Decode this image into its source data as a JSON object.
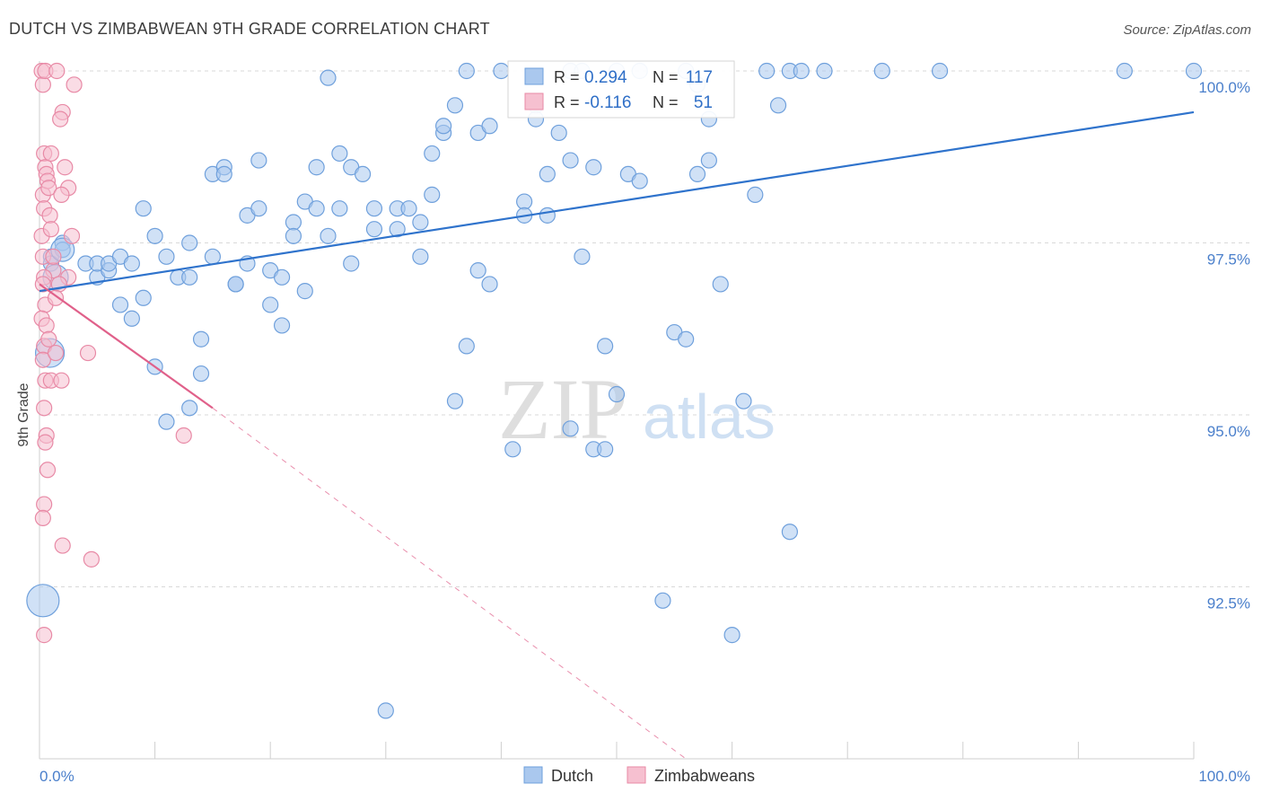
{
  "title": "DUTCH VS ZIMBABWEAN 9TH GRADE CORRELATION CHART",
  "source": "Source: ZipAtlas.com",
  "watermark": {
    "zip": "ZIP",
    "atlas": "atlas"
  },
  "chart_data": {
    "type": "scatter",
    "title": "DUTCH VS ZIMBABWEAN 9TH GRADE CORRELATION CHART",
    "xlabel": "",
    "ylabel": "9th Grade",
    "xlim": [
      0,
      100
    ],
    "ylim": [
      90.0,
      100.5
    ],
    "x_tick_labels": {
      "left": "0.0%",
      "right": "100.0%"
    },
    "y_ticks": [
      {
        "value": 100.0,
        "label": "100.0%"
      },
      {
        "value": 97.5,
        "label": "97.5%"
      },
      {
        "value": 95.0,
        "label": "95.0%"
      },
      {
        "value": 92.5,
        "label": "92.5%"
      }
    ],
    "grid": true,
    "legend_position": "bottom-center",
    "stats_box": [
      {
        "series": "Dutch",
        "r_label": "R =",
        "r_value": "0.294",
        "n_label": "N =",
        "n_value": "117"
      },
      {
        "series": "Zimbabweans",
        "r_label": "R =",
        "r_value": "-0.116",
        "n_label": "N =",
        "n_value": "51"
      }
    ],
    "series": [
      {
        "name": "Dutch",
        "color": "#6fa0dc",
        "fill": "#aac8ee",
        "line_color": "#2f73cc",
        "trend": {
          "x0": 0,
          "y0": 96.8,
          "x1": 100,
          "y1": 99.4
        },
        "points": [
          [
            1,
            97.3
          ],
          [
            1,
            97.2
          ],
          [
            2,
            97.5
          ],
          [
            2,
            97.4
          ],
          [
            4,
            97.2
          ],
          [
            5,
            97.0
          ],
          [
            5,
            97.2
          ],
          [
            6,
            97.1
          ],
          [
            6,
            97.2
          ],
          [
            7,
            97.3
          ],
          [
            7,
            96.6
          ],
          [
            8,
            96.4
          ],
          [
            8,
            97.2
          ],
          [
            9,
            96.7
          ],
          [
            9,
            98.0
          ],
          [
            10,
            97.6
          ],
          [
            10,
            95.7
          ],
          [
            11,
            97.3
          ],
          [
            11,
            94.9
          ],
          [
            12,
            97.0
          ],
          [
            13,
            97.0
          ],
          [
            13,
            95.1
          ],
          [
            13,
            97.5
          ],
          [
            14,
            96.1
          ],
          [
            14,
            95.6
          ],
          [
            15,
            98.5
          ],
          [
            15,
            97.3
          ],
          [
            16,
            98.6
          ],
          [
            16,
            98.5
          ],
          [
            17,
            96.9
          ],
          [
            17,
            96.9
          ],
          [
            18,
            97.9
          ],
          [
            18,
            97.2
          ],
          [
            19,
            98.7
          ],
          [
            19,
            98.0
          ],
          [
            20,
            97.1
          ],
          [
            20,
            96.6
          ],
          [
            21,
            96.3
          ],
          [
            21,
            97.0
          ],
          [
            22,
            97.8
          ],
          [
            22,
            97.6
          ],
          [
            23,
            98.1
          ],
          [
            23,
            96.8
          ],
          [
            24,
            98.6
          ],
          [
            24,
            98.0
          ],
          [
            25,
            97.6
          ],
          [
            25,
            99.9
          ],
          [
            26,
            98.0
          ],
          [
            26,
            98.8
          ],
          [
            27,
            97.2
          ],
          [
            27,
            98.6
          ],
          [
            28,
            98.5
          ],
          [
            29,
            97.7
          ],
          [
            29,
            98.0
          ],
          [
            30,
            90.7
          ],
          [
            31,
            97.7
          ],
          [
            31,
            98.0
          ],
          [
            32,
            98.0
          ],
          [
            33,
            97.3
          ],
          [
            33,
            97.8
          ],
          [
            34,
            98.2
          ],
          [
            34,
            98.8
          ],
          [
            35,
            99.1
          ],
          [
            35,
            99.2
          ],
          [
            36,
            99.5
          ],
          [
            36,
            95.2
          ],
          [
            37,
            96.0
          ],
          [
            37,
            100.0
          ],
          [
            38,
            97.1
          ],
          [
            38,
            99.1
          ],
          [
            39,
            99.2
          ],
          [
            39,
            96.9
          ],
          [
            40,
            100.0
          ],
          [
            41,
            94.5
          ],
          [
            42,
            98.1
          ],
          [
            42,
            97.9
          ],
          [
            43,
            99.5
          ],
          [
            43,
            99.3
          ],
          [
            44,
            98.5
          ],
          [
            44,
            97.9
          ],
          [
            45,
            99.1
          ],
          [
            46,
            94.8
          ],
          [
            46,
            98.7
          ],
          [
            46,
            100.0
          ],
          [
            47,
            97.3
          ],
          [
            47,
            100.0
          ],
          [
            48,
            94.5
          ],
          [
            48,
            98.6
          ],
          [
            49,
            96.0
          ],
          [
            49,
            94.5
          ],
          [
            50,
            95.3
          ],
          [
            50,
            100.0
          ],
          [
            51,
            98.5
          ],
          [
            52,
            98.4
          ],
          [
            52,
            100.0
          ],
          [
            54,
            92.3
          ],
          [
            55,
            96.2
          ],
          [
            56,
            100.0
          ],
          [
            56,
            96.1
          ],
          [
            57,
            98.5
          ],
          [
            57,
            99.8
          ],
          [
            58,
            98.7
          ],
          [
            58,
            99.3
          ],
          [
            59,
            96.9
          ],
          [
            60,
            91.8
          ],
          [
            61,
            95.2
          ],
          [
            62,
            98.2
          ],
          [
            63,
            100.0
          ],
          [
            64,
            99.5
          ],
          [
            65,
            93.3
          ],
          [
            65,
            100.0
          ],
          [
            66,
            100.0
          ],
          [
            68,
            100.0
          ],
          [
            73,
            100.0
          ],
          [
            78,
            100.0
          ],
          [
            94,
            100.0
          ],
          [
            100,
            100.0
          ]
        ],
        "big_points": [
          [
            0.3,
            92.3,
            18
          ],
          [
            0.9,
            95.9,
            16
          ],
          [
            1.4,
            97.0,
            14
          ],
          [
            2.0,
            97.4,
            13
          ]
        ]
      },
      {
        "name": "Zimbabweans",
        "color": "#e88aa6",
        "fill": "#f6c0d0",
        "line_color": "#e0608a",
        "trend": {
          "x0": 0,
          "y0": 96.9,
          "x1": 15,
          "y1": 95.1
        },
        "trend_dashed": {
          "x0": 15,
          "y0": 95.1,
          "x1": 56,
          "y1": 90.0
        },
        "points": [
          [
            0.2,
            100.0
          ],
          [
            0.3,
            99.8
          ],
          [
            0.5,
            100.0
          ],
          [
            0.4,
            98.8
          ],
          [
            0.5,
            98.6
          ],
          [
            0.6,
            98.5
          ],
          [
            0.3,
            98.2
          ],
          [
            0.7,
            98.4
          ],
          [
            0.8,
            98.3
          ],
          [
            0.4,
            98.0
          ],
          [
            0.9,
            97.9
          ],
          [
            0.2,
            97.6
          ],
          [
            1.0,
            97.7
          ],
          [
            0.3,
            97.3
          ],
          [
            1.2,
            97.1
          ],
          [
            0.4,
            97.0
          ],
          [
            0.3,
            96.9
          ],
          [
            0.5,
            96.6
          ],
          [
            0.2,
            96.4
          ],
          [
            0.6,
            96.3
          ],
          [
            0.4,
            96.0
          ],
          [
            0.3,
            95.8
          ],
          [
            0.5,
            95.5
          ],
          [
            1.0,
            95.5
          ],
          [
            0.4,
            95.1
          ],
          [
            0.6,
            94.7
          ],
          [
            0.5,
            94.6
          ],
          [
            0.7,
            94.2
          ],
          [
            0.4,
            93.7
          ],
          [
            0.3,
            93.5
          ],
          [
            2.0,
            93.1
          ],
          [
            4.5,
            92.9
          ],
          [
            0.4,
            91.8
          ],
          [
            1.5,
            100.0
          ],
          [
            3.0,
            99.8
          ],
          [
            2.0,
            99.4
          ],
          [
            1.8,
            99.3
          ],
          [
            1.0,
            98.8
          ],
          [
            2.2,
            98.6
          ],
          [
            2.5,
            98.3
          ],
          [
            1.9,
            98.2
          ],
          [
            2.8,
            97.6
          ],
          [
            1.2,
            97.3
          ],
          [
            2.5,
            97.0
          ],
          [
            1.7,
            96.9
          ],
          [
            1.4,
            96.7
          ],
          [
            0.8,
            96.1
          ],
          [
            1.4,
            95.9
          ],
          [
            4.2,
            95.9
          ],
          [
            1.9,
            95.5
          ],
          [
            12.5,
            94.7
          ]
        ]
      }
    ]
  }
}
